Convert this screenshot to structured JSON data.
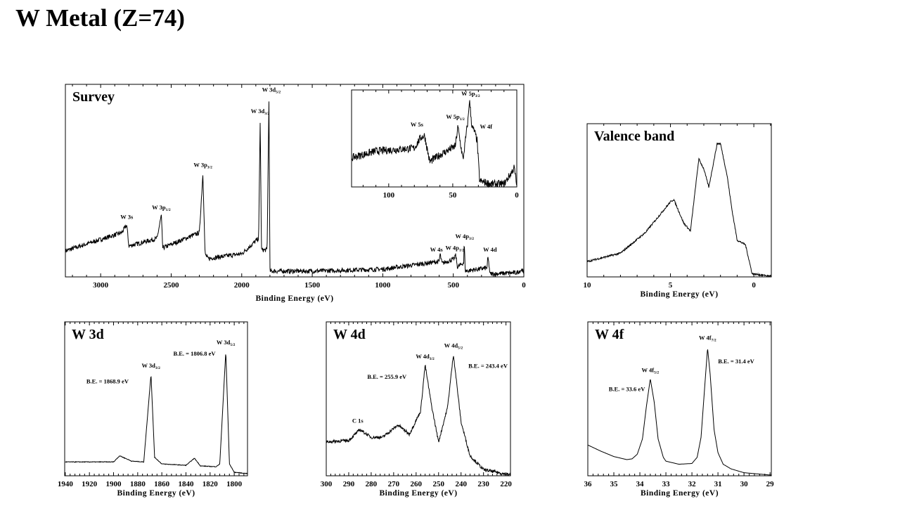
{
  "title": "W Metal (Z=74)",
  "chart_data": [
    {
      "id": "survey",
      "type": "line",
      "title": "Survey",
      "xlabel": "Binding Energy (eV)",
      "xlim": [
        3250,
        0
      ],
      "xticks": [
        3000,
        2500,
        2000,
        1500,
        1000,
        500,
        0
      ],
      "noise": 1.2,
      "x": [
        3250,
        2850,
        2815,
        2800,
        2600,
        2570,
        2560,
        2300,
        2275,
        2260,
        2240,
        2000,
        1880,
        1869,
        1860,
        1820,
        1807,
        1800,
        1500,
        1000,
        600,
        594,
        580,
        490,
        485,
        470,
        425,
        423,
        415,
        260,
        255,
        245,
        240,
        50,
        10,
        0
      ],
      "y": [
        13.5,
        23,
        27,
        16,
        20,
        32,
        15,
        23,
        54,
        12,
        9.5,
        12,
        20,
        82,
        14,
        14,
        93,
        3,
        3,
        4,
        8,
        12,
        7,
        9.5,
        12,
        5,
        7.5,
        19,
        3,
        4.7,
        10.5,
        5,
        1.5,
        2.2,
        4,
        0.7
      ],
      "annotations": [
        {
          "x": 2815,
          "y": 29,
          "label": "W 3s",
          "sub": ""
        },
        {
          "x": 2570,
          "y": 34,
          "label": "W 3p",
          "sub": "1/2"
        },
        {
          "x": 2275,
          "y": 56,
          "label": "W 3p",
          "sub": "3/2"
        },
        {
          "x": 1869,
          "y": 84,
          "label": "W 3d",
          "sub": "3/2"
        },
        {
          "x": 1790,
          "y": 95,
          "label": "W 3d",
          "sub": "5/2"
        },
        {
          "x": 620,
          "y": 12,
          "label": "W 4s",
          "sub": ""
        },
        {
          "x": 490,
          "y": 13,
          "label": "W 4p",
          "sub": "1/2"
        },
        {
          "x": 420,
          "y": 19,
          "label": "W 4p",
          "sub": "3/2"
        },
        {
          "x": 240,
          "y": 12,
          "label": "W 4d",
          "sub": ""
        }
      ]
    },
    {
      "id": "inset",
      "type": "line",
      "title": "",
      "xlabel": "",
      "xlim": [
        129,
        0
      ],
      "xticks": [
        100,
        50,
        0
      ],
      "noise": 4,
      "x": [
        129,
        110,
        90,
        80,
        75,
        72,
        68,
        60,
        48,
        46,
        42,
        38,
        37,
        35,
        33,
        31,
        29,
        20,
        10,
        5,
        2,
        0
      ],
      "y": [
        30,
        37,
        39,
        40,
        51,
        53,
        26,
        33,
        42,
        62,
        28,
        70,
        90,
        62,
        57,
        48,
        6,
        3,
        3,
        13,
        20,
        1
      ],
      "annotations": [
        {
          "x": 78,
          "y": 60,
          "label": "W 5s",
          "sub": ""
        },
        {
          "x": 48,
          "y": 68,
          "label": "W 5p",
          "sub": "1/2"
        },
        {
          "x": 36,
          "y": 92,
          "label": "W 5p",
          "sub": "3/2"
        },
        {
          "x": 24,
          "y": 58,
          "label": "W 4f",
          "sub": ""
        }
      ]
    },
    {
      "id": "valence",
      "type": "line",
      "title": "Valence band",
      "xlabel": "Binding Energy (eV)",
      "xlim": [
        10,
        -1.05
      ],
      "xticks": [
        10,
        5,
        0
      ],
      "noise": 0.6,
      "x": [
        10,
        8,
        6.5,
        5,
        4.8,
        4.2,
        3.8,
        3.3,
        3,
        2.7,
        2.2,
        2,
        1.6,
        1.3,
        1.0,
        0.5,
        0.1,
        -1
      ],
      "y": [
        10,
        15.5,
        29,
        49,
        50.5,
        35,
        30,
        77,
        70.5,
        58.5,
        87,
        87,
        66,
        43,
        24,
        21,
        2,
        0.5
      ],
      "annotations": []
    },
    {
      "id": "w3d",
      "type": "line",
      "title": "W 3d",
      "xlabel": "Binding Energy (eV)",
      "xlim": [
        1940.5,
        1789
      ],
      "xticks": [
        1940,
        1920,
        1900,
        1880,
        1860,
        1840,
        1820,
        1800
      ],
      "noise": 0.2,
      "x": [
        1940,
        1900,
        1895,
        1885,
        1875,
        1869,
        1866,
        1860,
        1840,
        1833,
        1828,
        1815,
        1812,
        1807,
        1804,
        1800,
        1789
      ],
      "y": [
        9,
        9,
        13,
        9.5,
        9,
        66,
        12,
        7.7,
        6.8,
        11.4,
        6.4,
        5.9,
        7.7,
        81,
        7.7,
        2.3,
        1.4
      ],
      "annotations": [
        {
          "x": 1869,
          "y": 69,
          "label": "W 3d",
          "sub": "3/2"
        },
        {
          "x": 1807,
          "y": 84,
          "label": "W 3d",
          "sub": "5/2"
        }
      ],
      "notes": [
        {
          "x": 1905,
          "y": 60,
          "text": "B.E. = 1868.9 eV"
        },
        {
          "x": 1833,
          "y": 78,
          "text": "B.E. = 1806.8 eV"
        }
      ]
    },
    {
      "id": "w4d",
      "type": "line",
      "title": "W 4d",
      "xlabel": "Binding Energy (eV)",
      "xlim": [
        300,
        218
      ],
      "xticks": [
        300,
        290,
        280,
        270,
        260,
        250,
        240,
        230,
        220
      ],
      "noise": 1.0,
      "x": [
        300,
        290,
        285,
        280,
        275,
        268,
        263,
        258,
        256,
        253,
        250,
        246,
        243.4,
        240,
        236,
        230,
        218
      ],
      "y": [
        22,
        23,
        30,
        25,
        25,
        33,
        27,
        42,
        72,
        44.5,
        22,
        44.5,
        79,
        35,
        13,
        4,
        0.5
      ],
      "annotations": [
        {
          "x": 286,
          "y": 33,
          "label": "C 1s",
          "sub": ""
        },
        {
          "x": 256,
          "y": 75,
          "label": "W 4d",
          "sub": "3/2"
        },
        {
          "x": 243.4,
          "y": 82,
          "label": "W 4d",
          "sub": "5/2"
        }
      ],
      "notes": [
        {
          "x": 273,
          "y": 63,
          "text": "B.E. = 255.9 eV"
        },
        {
          "x": 228,
          "y": 70,
          "text": "B.E. = 243.4 eV"
        }
      ]
    },
    {
      "id": "w4f",
      "type": "line",
      "title": "W 4f",
      "xlabel": "Binding Energy (eV)",
      "xlim": [
        36,
        28.95
      ],
      "xticks": [
        36,
        35,
        34,
        33,
        32,
        31,
        30,
        29
      ],
      "noise": 0,
      "x": [
        36,
        35.5,
        35,
        34.5,
        34.3,
        34.1,
        33.9,
        33.75,
        33.6,
        33.45,
        33.3,
        33.1,
        33,
        32.5,
        32,
        31.8,
        31.65,
        31.5,
        31.4,
        31.3,
        31.15,
        31,
        30.8,
        30.5,
        30,
        29,
        28.95
      ],
      "y": [
        20,
        16,
        12.5,
        10.5,
        11,
        14,
        24,
        45,
        63,
        48,
        24,
        12,
        9.5,
        7.5,
        8,
        12,
        25,
        60,
        83,
        66,
        30,
        15,
        7.5,
        4.5,
        2,
        0.5,
        0.5
      ],
      "annotations": [
        {
          "x": 33.6,
          "y": 66,
          "label": "W 4f",
          "sub": "5/2"
        },
        {
          "x": 31.4,
          "y": 87,
          "label": "W 4f",
          "sub": "7/2"
        }
      ],
      "notes": [
        {
          "x": 34.5,
          "y": 55,
          "text": "B.E. = 33.6 eV"
        },
        {
          "x": 30.3,
          "y": 73,
          "text": "B.E. = 31.4 eV"
        }
      ]
    }
  ]
}
